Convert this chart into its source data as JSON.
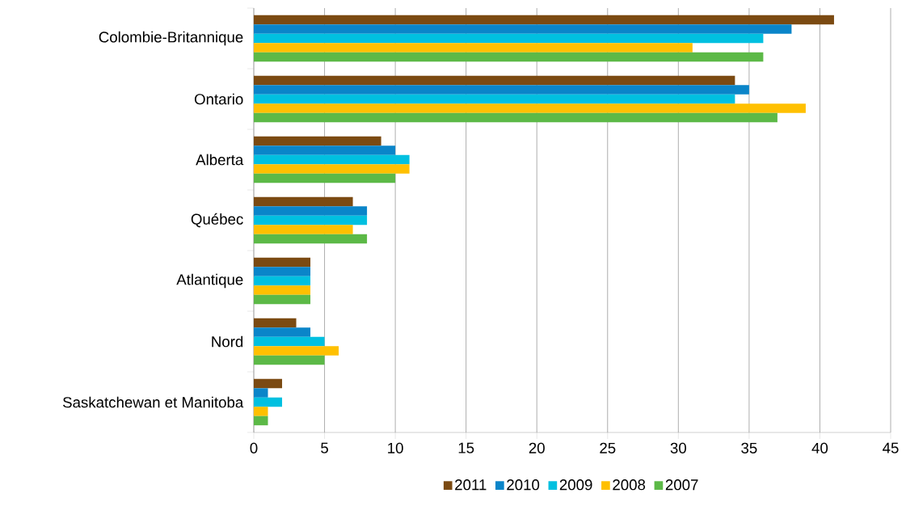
{
  "chart_data": {
    "type": "bar",
    "orientation": "horizontal",
    "categories": [
      "Colombie-Britannique",
      "Ontario",
      "Alberta",
      "Québec",
      "Atlantique",
      "Nord",
      "Saskatchewan et Manitoba"
    ],
    "series": [
      {
        "name": "2011",
        "color": "#7b4a12",
        "values": [
          41,
          34,
          9,
          7,
          4,
          3,
          2
        ]
      },
      {
        "name": "2010",
        "color": "#0a85c9",
        "values": [
          38,
          35,
          10,
          8,
          4,
          4,
          1
        ]
      },
      {
        "name": "2009",
        "color": "#00c0e0",
        "values": [
          36,
          34,
          11,
          8,
          4,
          5,
          2
        ]
      },
      {
        "name": "2008",
        "color": "#ffc000",
        "values": [
          31,
          39,
          11,
          7,
          4,
          6,
          1
        ]
      },
      {
        "name": "2007",
        "color": "#5cb947",
        "values": [
          36,
          37,
          10,
          8,
          4,
          5,
          1
        ]
      }
    ],
    "xlim": [
      0,
      45
    ],
    "xticks": [
      0,
      5,
      10,
      15,
      20,
      25,
      30,
      35,
      40,
      45
    ],
    "grid": "x",
    "legend": "bottom"
  }
}
